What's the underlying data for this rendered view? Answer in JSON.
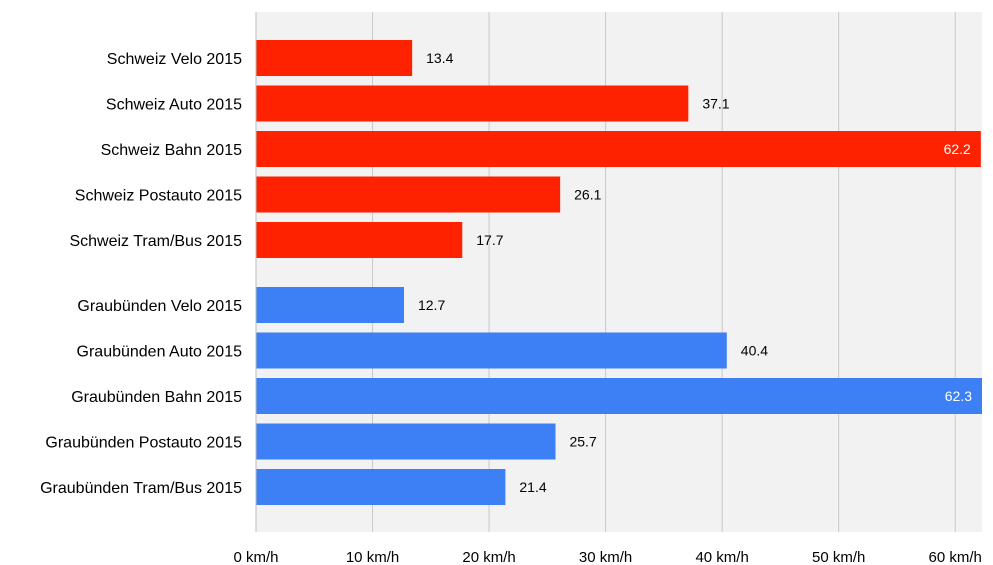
{
  "chart_data": {
    "type": "bar",
    "orientation": "horizontal",
    "groups": [
      {
        "color": "#ff2200",
        "categories": [
          "Schweiz Velo 2015",
          "Schweiz Auto 2015",
          "Schweiz Bahn 2015",
          "Schweiz Postauto 2015",
          "Schweiz Tram/Bus 2015"
        ],
        "values": [
          13.4,
          37.1,
          62.2,
          26.1,
          17.7
        ],
        "value_labels": [
          "13.4",
          "37.1",
          "62.2",
          "26.1",
          "17.7"
        ]
      },
      {
        "color": "#3d7ff5",
        "categories": [
          "Graubünden Velo 2015",
          "Graubünden Auto 2015",
          "Graubünden Bahn 2015",
          "Graubünden Postauto 2015",
          "Graubünden Tram/Bus 2015"
        ],
        "values": [
          12.7,
          40.4,
          62.3,
          25.7,
          21.4
        ],
        "value_labels": [
          "12.7",
          "40.4",
          "62.3",
          "25.7",
          "21.4"
        ]
      }
    ],
    "x_ticks": [
      "0 km/h",
      "10 km/h",
      "20 km/h",
      "30 km/h",
      "40 km/h",
      "50 km/h",
      "60 km/h"
    ],
    "x_tick_values": [
      0,
      10,
      20,
      30,
      40,
      50,
      60
    ],
    "xlim": [
      0,
      62.3
    ],
    "plot_background": "#f2f2f2",
    "grid": true,
    "legend": "none",
    "title": "",
    "xlabel": "",
    "ylabel": ""
  }
}
